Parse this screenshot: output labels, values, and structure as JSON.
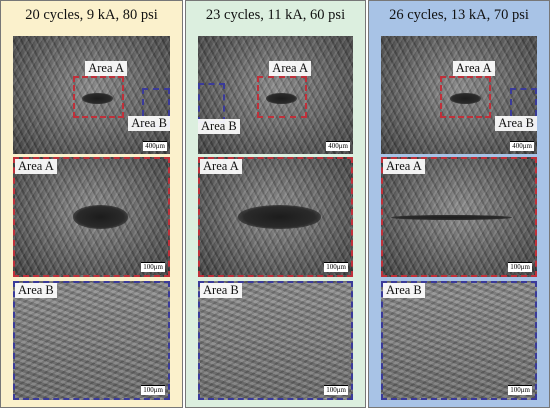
{
  "columns": [
    {
      "title": "20 cycles, 9 kA, 80 psi",
      "panels": [
        {
          "labels": [
            "Area A",
            "Area B"
          ],
          "scale": "400μm"
        },
        {
          "labels": [
            "Area A"
          ],
          "scale": "100μm"
        },
        {
          "labels": [
            "Area B"
          ],
          "scale": "100μm"
        }
      ]
    },
    {
      "title": "23 cycles, 11 kA, 60 psi",
      "panels": [
        {
          "labels": [
            "Area A",
            "Area B"
          ],
          "scale": "400μm"
        },
        {
          "labels": [
            "Area A"
          ],
          "scale": "100μm"
        },
        {
          "labels": [
            "Area B"
          ],
          "scale": "100μm"
        }
      ]
    },
    {
      "title": "26 cycles, 13 kA, 70 psi",
      "panels": [
        {
          "labels": [
            "Area A",
            "Area B"
          ],
          "scale": "400μm"
        },
        {
          "labels": [
            "Area A"
          ],
          "scale": "100μm"
        },
        {
          "labels": [
            "Area B"
          ],
          "scale": "100μm"
        }
      ]
    }
  ]
}
